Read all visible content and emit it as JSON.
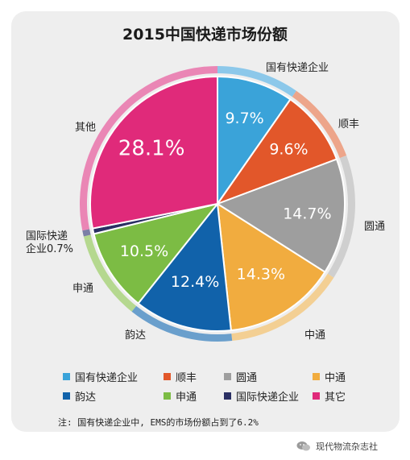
{
  "chart_data": {
    "type": "pie",
    "title": "2015中国快递市场份额",
    "slices": [
      {
        "name": "国有快递企业",
        "outer_label": "国有快递企业",
        "value": 9.7,
        "value_label": "9.7%",
        "color": "#3aa3d9",
        "ring_color": "#8cc8ea",
        "label_color": "#ffffff"
      },
      {
        "name": "顺丰",
        "outer_label": "顺丰",
        "value": 9.6,
        "value_label": "9.6%",
        "color": "#e2572a",
        "ring_color": "#eda58a",
        "label_color": "#ffffff"
      },
      {
        "name": "圆通",
        "outer_label": "圆通",
        "value": 14.7,
        "value_label": "14.7%",
        "color": "#9e9e9e",
        "ring_color": "#cfcfcf",
        "label_color": "#ffffff"
      },
      {
        "name": "中通",
        "outer_label": "中通",
        "value": 14.3,
        "value_label": "14.3%",
        "color": "#f1ac3f",
        "ring_color": "#f3cf93",
        "label_color": "#ffffff"
      },
      {
        "name": "韵达",
        "outer_label": "韵达",
        "value": 12.4,
        "value_label": "12.4%",
        "color": "#1162aa",
        "ring_color": "#6a9fcc",
        "label_color": "#ffffff"
      },
      {
        "name": "申通",
        "outer_label": "申通",
        "value": 10.5,
        "value_label": "10.5%",
        "color": "#7cbc44",
        "ring_color": "#b5d88f",
        "label_color": "#ffffff"
      },
      {
        "name": "国际快递企业",
        "outer_label": "国际快递\n企业0.7%",
        "value": 0.7,
        "value_label": "",
        "color": "#2a2f63",
        "ring_color": "#7b7fa6",
        "label_color": "#ffffff"
      },
      {
        "name": "其它",
        "outer_label": "其他",
        "value": 28.1,
        "value_label": "28.1%",
        "color": "#e02a7a",
        "ring_color": "#ea86b5",
        "label_color": "#ffffff"
      }
    ],
    "legend": {
      "placement": "bottom",
      "items": [
        {
          "label": "国有快递企业",
          "color": "#3aa3d9"
        },
        {
          "label": "顺丰",
          "color": "#e2572a"
        },
        {
          "label": "圆通",
          "color": "#9e9e9e"
        },
        {
          "label": "中通",
          "color": "#f1ac3f"
        },
        {
          "label": "韵达",
          "color": "#1162aa"
        },
        {
          "label": "申通",
          "color": "#7cbc44"
        },
        {
          "label": "国际快递企业",
          "color": "#2a2f63"
        },
        {
          "label": "其它",
          "color": "#e02a7a"
        }
      ]
    },
    "note": "注: 国有快递企业中, EMS的市场份额占到了6.2%"
  },
  "watermark": {
    "text": "现代物流杂志社",
    "icon": "wechat-icon"
  }
}
